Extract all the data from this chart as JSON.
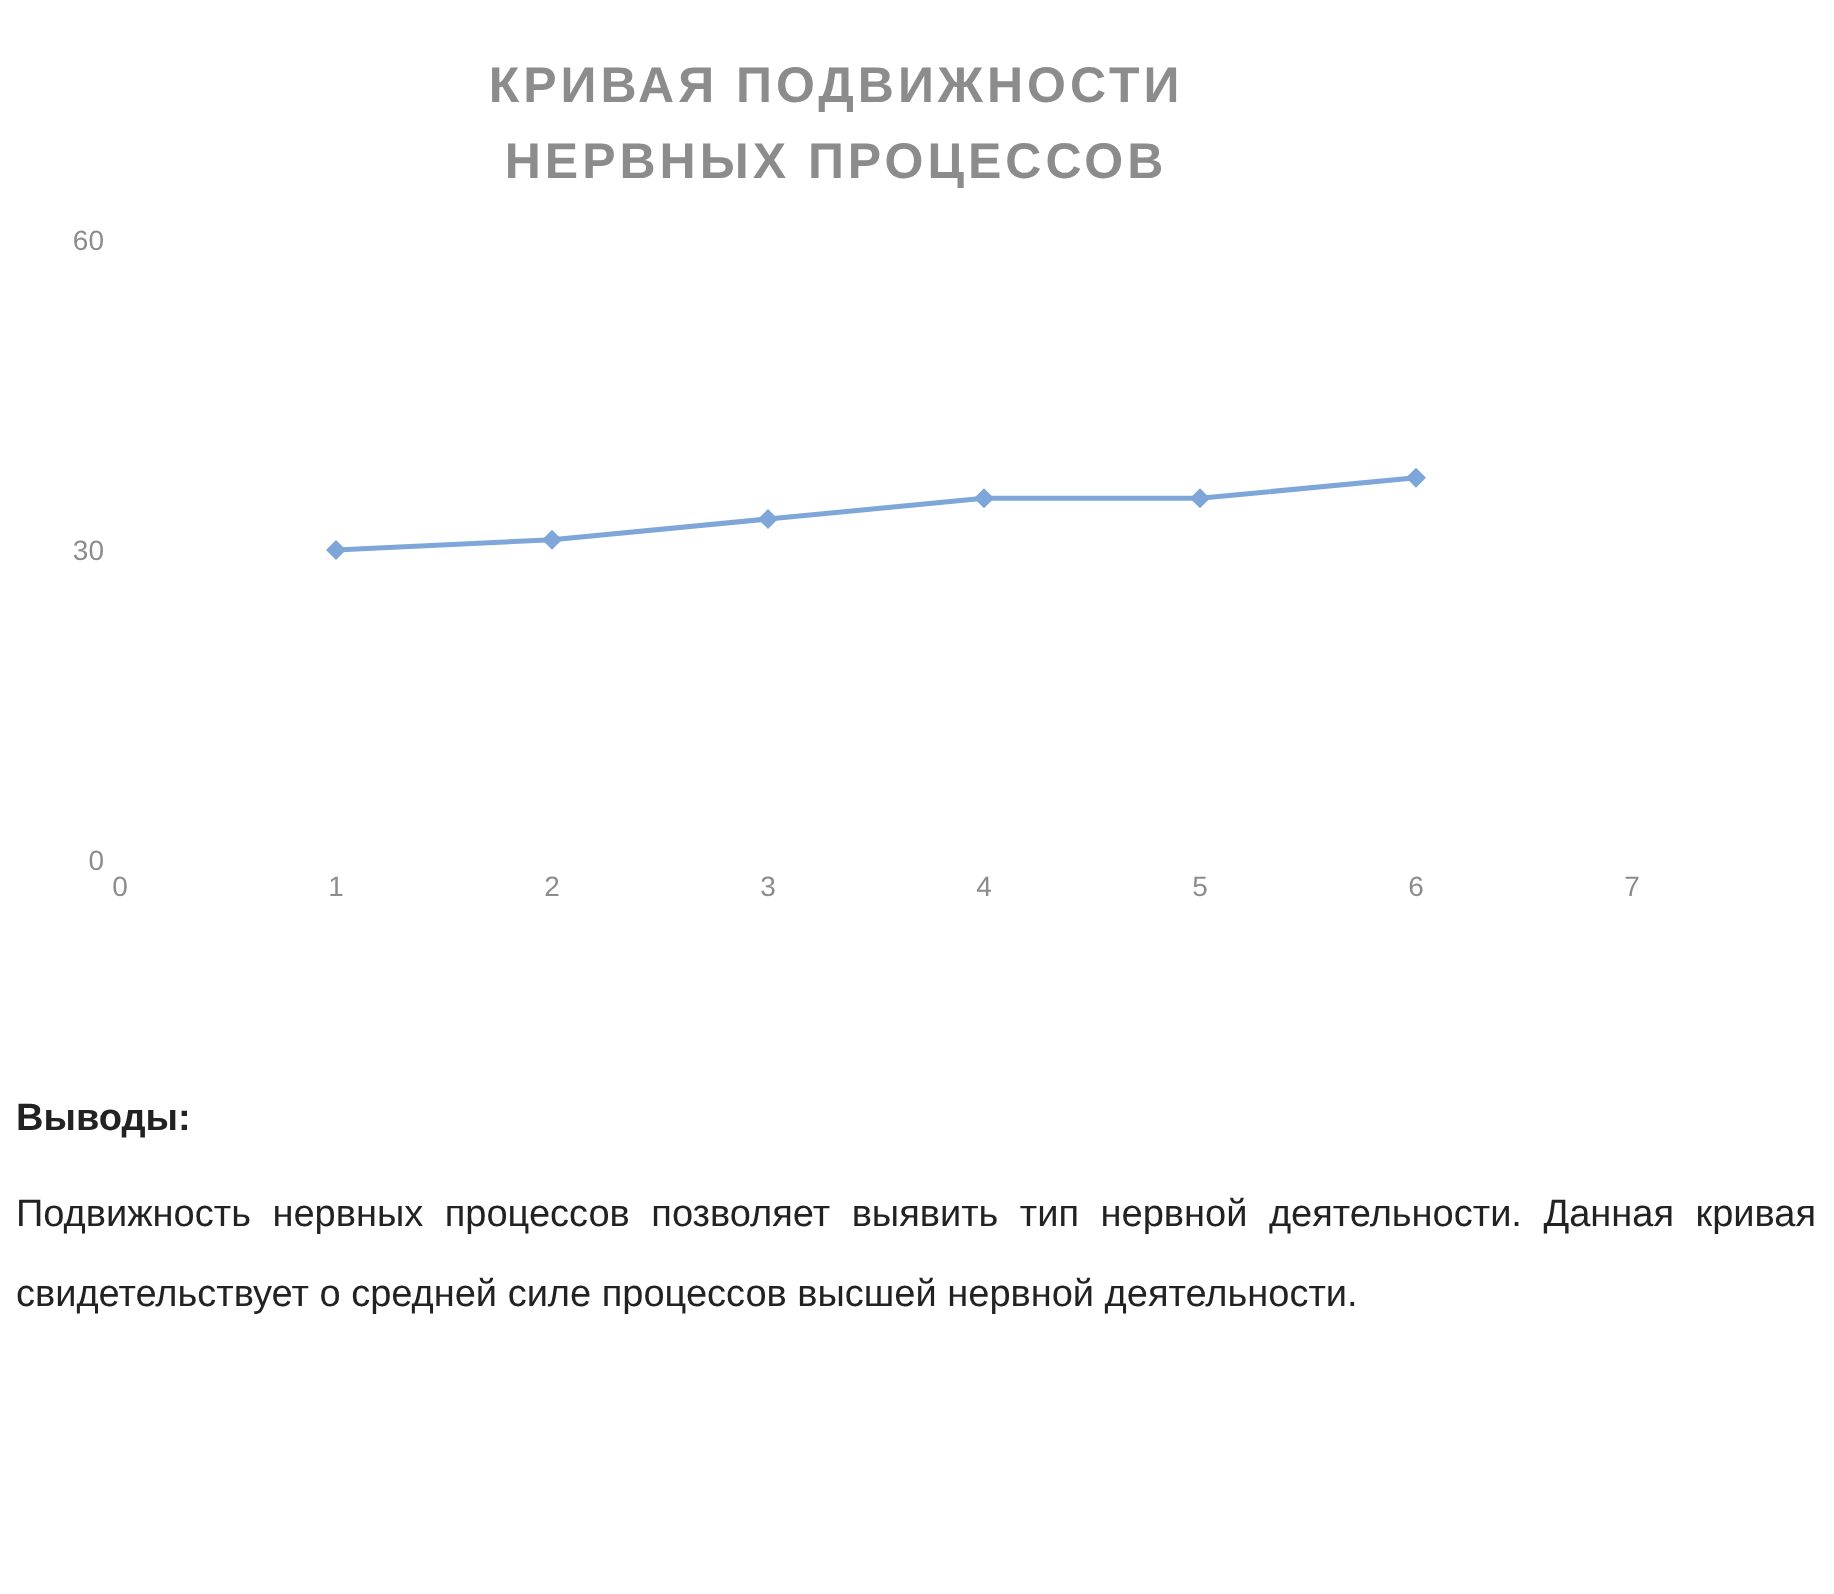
{
  "chart_data": {
    "type": "line",
    "title": "КРИВАЯ ПОДВИЖНОСТИ НЕРВНЫХ ПРОЦЕССОВ",
    "x": [
      1,
      2,
      3,
      4,
      5,
      6
    ],
    "series": [
      {
        "color": "#7ea6d8",
        "values": [
          30,
          31,
          33,
          35,
          35,
          37
        ]
      }
    ],
    "xlim": [
      0,
      7
    ],
    "xticks": [
      0,
      1,
      2,
      3,
      4,
      5,
      6,
      7
    ],
    "ylim": [
      0,
      60
    ],
    "yticks": [
      0,
      30,
      60
    ],
    "marker": "diamond",
    "line_style": "solid",
    "grid": false,
    "legend": false,
    "annotations": [
      "Выводы:",
      "Подвижность нервных процессов позволяет выявить тип нервной деятельности. Данная кривая свидетельствует о средней силе процессов высшей нервной деятельности."
    ]
  }
}
